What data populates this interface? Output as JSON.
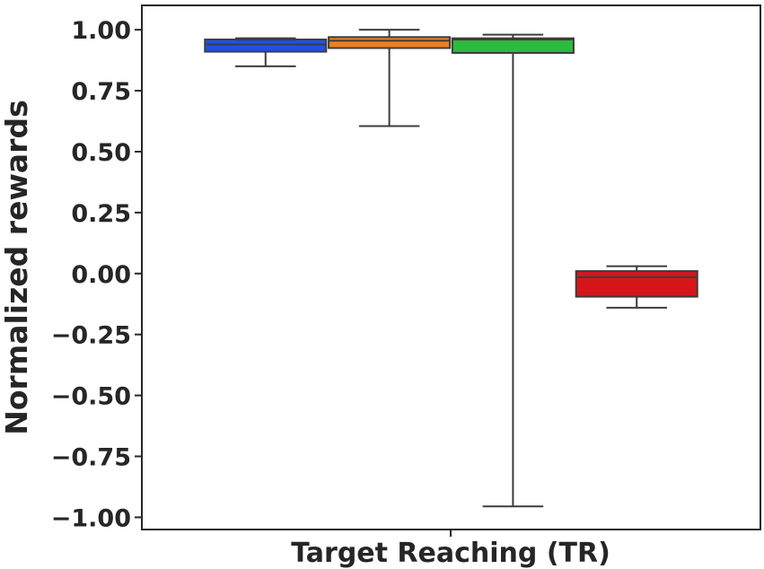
{
  "chart_data": {
    "type": "box",
    "categories": [
      "Target Reaching (TR)"
    ],
    "ylabel": "Normalized rewards",
    "ylim": [
      -1.05,
      1.1
    ],
    "yticks": [
      {
        "value": 1.0,
        "label": "1.00"
      },
      {
        "value": 0.75,
        "label": "0.75"
      },
      {
        "value": 0.5,
        "label": "0.50"
      },
      {
        "value": 0.25,
        "label": "0.25"
      },
      {
        "value": 0.0,
        "label": "0.00"
      },
      {
        "value": -0.25,
        "label": "−0.25"
      },
      {
        "value": -0.5,
        "label": "−0.50"
      },
      {
        "value": -0.75,
        "label": "−0.75"
      },
      {
        "value": -1.0,
        "label": "−1.00"
      }
    ],
    "grid": false,
    "legend": "none",
    "boxes": [
      {
        "color": "#1f4ff0",
        "whisker_low": 0.85,
        "q1": 0.91,
        "median": 0.94,
        "q3": 0.96,
        "whisker_high": 0.965
      },
      {
        "color": "#f07f1f",
        "whisker_low": 0.605,
        "q1": 0.925,
        "median": 0.955,
        "q3": 0.97,
        "whisker_high": 1.0
      },
      {
        "color": "#2dbb3d",
        "whisker_low": -0.955,
        "q1": 0.905,
        "median": 0.96,
        "q3": 0.965,
        "whisker_high": 0.98
      },
      {
        "color": "#d6151b",
        "whisker_low": -0.14,
        "q1": -0.095,
        "median": -0.015,
        "q3": 0.01,
        "whisker_high": 0.03
      }
    ]
  }
}
